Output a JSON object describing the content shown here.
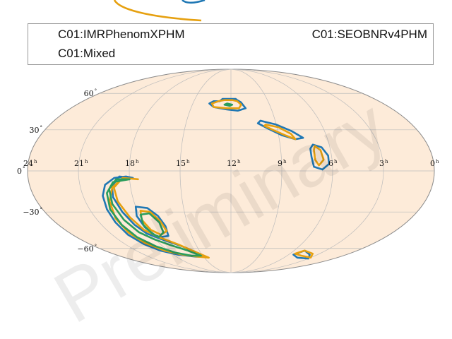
{
  "chart_data": {
    "type": "other",
    "projection": "mollweide",
    "title": "",
    "xlabel": "",
    "ylabel": "",
    "ra_ticks": [
      {
        "ra_h": 24,
        "label": "24",
        "unit": "h"
      },
      {
        "ra_h": 21,
        "label": "21",
        "unit": "h"
      },
      {
        "ra_h": 18,
        "label": "18",
        "unit": "h"
      },
      {
        "ra_h": 15,
        "label": "15",
        "unit": "h"
      },
      {
        "ra_h": 12,
        "label": "12",
        "unit": "h"
      },
      {
        "ra_h": 9,
        "label": "9",
        "unit": "h"
      },
      {
        "ra_h": 6,
        "label": "6",
        "unit": "h"
      },
      {
        "ra_h": 3,
        "label": "3",
        "unit": "h"
      },
      {
        "ra_h": 0,
        "label": "0",
        "unit": "h"
      }
    ],
    "dec_ticks": [
      {
        "dec": 60,
        "label": "60",
        "unit": "°"
      },
      {
        "dec": 30,
        "label": "30",
        "unit": "°"
      },
      {
        "dec": 0,
        "label": "0",
        "unit": "°"
      },
      {
        "dec": -30,
        "label": "−30",
        "unit": "°"
      },
      {
        "dec": -60,
        "label": "−60",
        "unit": "°"
      }
    ],
    "grid": true,
    "legend": {
      "placement": "top",
      "entries": [
        "C01:IMRPhenomXPHM",
        "C01:SEOBNRv4PHM",
        "C01:Mixed"
      ]
    },
    "watermark": "Preliminary",
    "colors": {
      "background": "#fdebd9",
      "grid": "#bcbcbc",
      "outline": "#8a8a8a",
      "IMRPhenomXPHM": "#1f77b4",
      "SEOBNRv4PHM": "#e6a00f",
      "Mixed": "#2a9d5c"
    },
    "series": [
      {
        "name": "C01:IMRPhenomXPHM",
        "color": "#1f77b4",
        "contours": [
          [
            [
              11.5,
              54
            ],
            [
              11.2,
              52
            ],
            [
              10.9,
              47
            ],
            [
              11.5,
              45
            ],
            [
              12.3,
              46
            ],
            [
              13.3,
              48
            ],
            [
              13.7,
              51
            ],
            [
              13.4,
              53
            ],
            [
              12.9,
              53
            ],
            [
              12.7,
              55
            ],
            [
              12.2,
              55
            ],
            [
              11.6,
              55
            ]
          ],
          [
            [
              10.0,
              37
            ],
            [
              9.0,
              34
            ],
            [
              8.1,
              29
            ],
            [
              7.5,
              24
            ],
            [
              8.0,
              23
            ],
            [
              8.8,
              26
            ],
            [
              9.6,
              31
            ],
            [
              10.2,
              35
            ]
          ],
          [
            [
              7.0,
              19
            ],
            [
              6.5,
              17
            ],
            [
              6.2,
              11
            ],
            [
              6.2,
              5
            ],
            [
              6.6,
              1
            ],
            [
              7.1,
              3
            ],
            [
              7.2,
              10
            ],
            [
              7.2,
              16
            ]
          ],
          [
            [
              17.8,
              -5
            ],
            [
              18.6,
              -4
            ],
            [
              19.1,
              -11
            ],
            [
              19.2,
              -19
            ],
            [
              19.0,
              -30
            ],
            [
              18.7,
              -40
            ],
            [
              18.3,
              -47
            ],
            [
              17.5,
              -52
            ],
            [
              16.3,
              -58
            ],
            [
              15.2,
              -65
            ],
            [
              14.8,
              -68
            ],
            [
              15.8,
              -68
            ],
            [
              17.5,
              -66
            ],
            [
              18.7,
              -62
            ],
            [
              19.4,
              -56
            ],
            [
              19.8,
              -48
            ],
            [
              19.9,
              -38
            ],
            [
              19.9,
              -28
            ],
            [
              19.8,
              -18
            ],
            [
              19.5,
              -10
            ],
            [
              18.9,
              -5
            ],
            [
              18.2,
              -4
            ]
          ],
          [
            [
              17.5,
              -50
            ],
            [
              16.8,
              -49
            ],
            [
              16.6,
              -41
            ],
            [
              16.8,
              -33
            ],
            [
              17.3,
              -27
            ],
            [
              18.0,
              -26
            ],
            [
              18.2,
              -33
            ],
            [
              18.1,
              -42
            ],
            [
              17.8,
              -48
            ]
          ],
          [
            [
              5.0,
              -62
            ],
            [
              3.8,
              -66
            ],
            [
              3.0,
              -70
            ],
            [
              4.5,
              -69
            ],
            [
              5.5,
              -66
            ]
          ]
        ]
      },
      {
        "name": "C01:SEOBNRv4PHM",
        "color": "#e6a00f",
        "contours": [
          [
            [
              11.5,
              53
            ],
            [
              11.2,
              50
            ],
            [
              11.4,
              47
            ],
            [
              12.3,
              47
            ],
            [
              13.3,
              48
            ],
            [
              13.5,
              51
            ],
            [
              13.0,
              53
            ],
            [
              12.5,
              54
            ],
            [
              11.9,
              54
            ]
          ],
          [
            [
              9.7,
              34
            ],
            [
              8.9,
              32
            ],
            [
              8.2,
              27
            ],
            [
              8.0,
              23
            ],
            [
              8.6,
              26
            ],
            [
              9.3,
              30
            ],
            [
              9.8,
              33
            ]
          ],
          [
            [
              6.9,
              18
            ],
            [
              6.6,
              15
            ],
            [
              6.5,
              8
            ],
            [
              6.8,
              4
            ],
            [
              7.0,
              8
            ],
            [
              7.0,
              15
            ]
          ],
          [
            [
              17.5,
              -6
            ],
            [
              18.4,
              -5
            ],
            [
              19.0,
              -12
            ],
            [
              19.0,
              -22
            ],
            [
              18.7,
              -34
            ],
            [
              18.3,
              -44
            ],
            [
              17.6,
              -50
            ],
            [
              16.4,
              -57
            ],
            [
              15.2,
              -65
            ],
            [
              14.5,
              -69
            ],
            [
              15.6,
              -68
            ],
            [
              17.0,
              -66
            ],
            [
              18.3,
              -62
            ],
            [
              19.2,
              -55
            ],
            [
              19.6,
              -46
            ],
            [
              19.7,
              -35
            ],
            [
              19.5,
              -22
            ],
            [
              19.1,
              -12
            ],
            [
              18.4,
              -5
            ]
          ],
          [
            [
              17.3,
              -48
            ],
            [
              16.7,
              -45
            ],
            [
              16.8,
              -37
            ],
            [
              17.2,
              -30
            ],
            [
              17.8,
              -29
            ],
            [
              18.0,
              -36
            ],
            [
              17.8,
              -44
            ]
          ],
          [
            [
              5.0,
              -62
            ],
            [
              3.7,
              -65
            ],
            [
              3.0,
              -69
            ],
            [
              4.5,
              -67
            ],
            [
              5.5,
              -65
            ]
          ]
        ]
      },
      {
        "name": "C01:Mixed",
        "color": "#2a9d5c",
        "contours": [
          [
            [
              12.3,
              51
            ],
            [
              11.9,
              50
            ],
            [
              12.1,
              49
            ],
            [
              12.5,
              50
            ]
          ],
          [
            [
              18.0,
              -6
            ],
            [
              18.8,
              -6
            ],
            [
              19.3,
              -13
            ],
            [
              19.4,
              -24
            ],
            [
              19.2,
              -36
            ],
            [
              18.8,
              -46
            ],
            [
              18.1,
              -52
            ],
            [
              17.2,
              -57
            ],
            [
              16.1,
              -62
            ],
            [
              15.2,
              -67
            ],
            [
              16.2,
              -67
            ],
            [
              17.5,
              -64
            ],
            [
              18.6,
              -58
            ],
            [
              19.3,
              -50
            ],
            [
              19.6,
              -40
            ],
            [
              19.7,
              -28
            ],
            [
              19.5,
              -16
            ],
            [
              19.0,
              -8
            ]
          ],
          [
            [
              17.6,
              -50
            ],
            [
              17.0,
              -46
            ],
            [
              16.9,
              -38
            ],
            [
              17.3,
              -31
            ],
            [
              17.9,
              -32
            ],
            [
              18.1,
              -40
            ],
            [
              17.9,
              -47
            ]
          ]
        ]
      }
    ]
  }
}
